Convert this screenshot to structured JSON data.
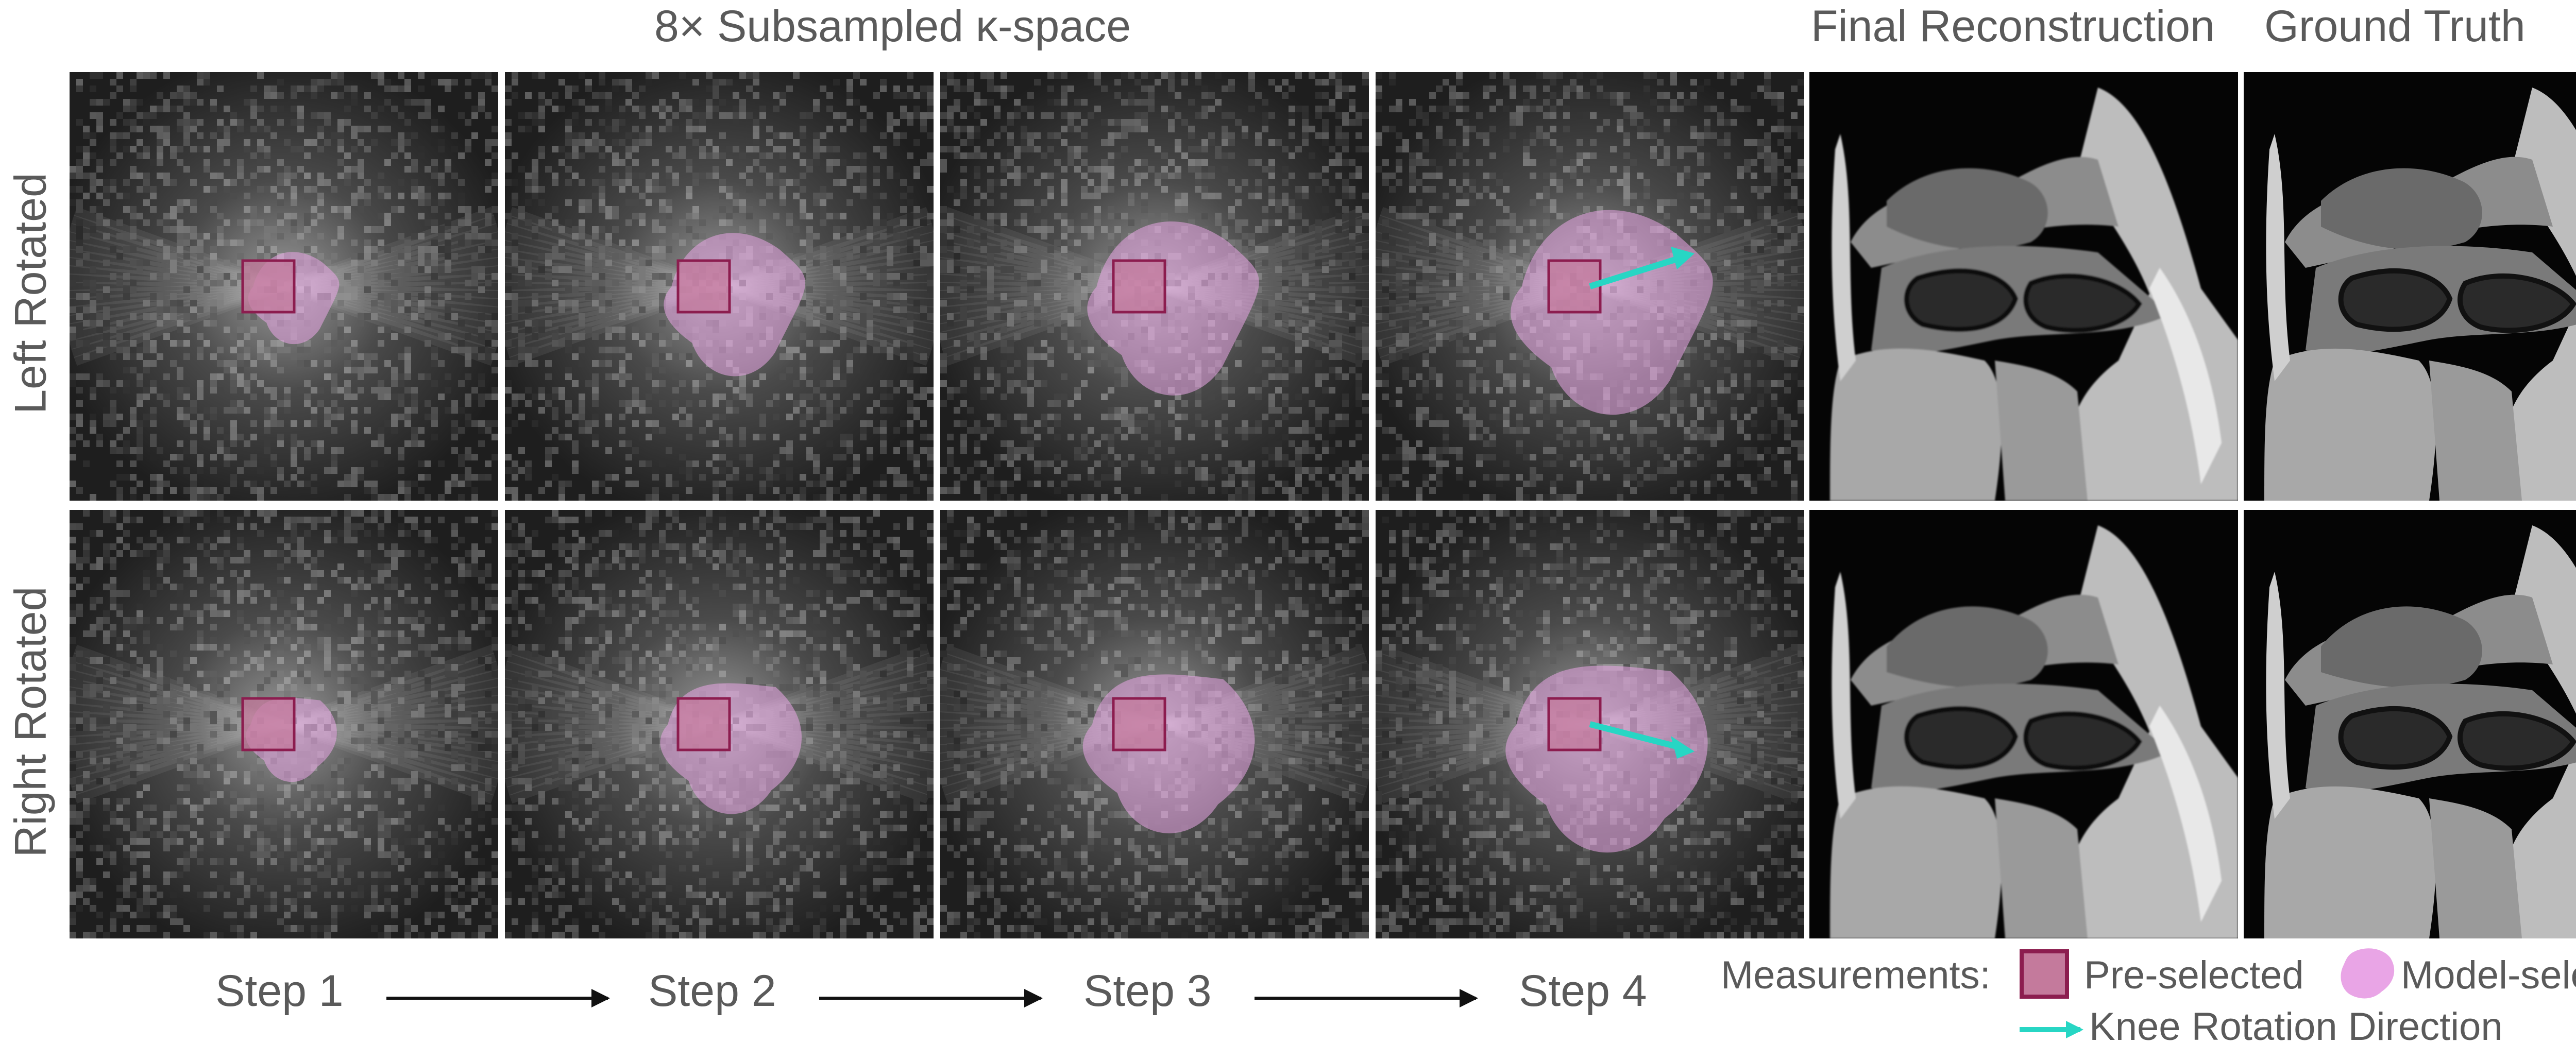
{
  "headers": {
    "kspace": "8× Subsampled κ-space",
    "final": "Final Reconstruction",
    "truth": "Ground Truth"
  },
  "rows": [
    {
      "label": "Left Rotated",
      "rotation": "left"
    },
    {
      "label": "Right Rotated",
      "rotation": "right"
    }
  ],
  "steps": [
    "Step 1",
    "Step 2",
    "Step 3",
    "Step 4"
  ],
  "legend": {
    "title": "Measurements:",
    "preselected": "Pre-selected",
    "modelselected": "Model-selected",
    "arrow": "Knee Rotation Direction"
  },
  "colors": {
    "preselected_fill": "#c47a9c",
    "preselected_border": "#8c1d4f",
    "modelselected": "#e9a5e6",
    "rotation_arrow": "#27d6c4"
  }
}
